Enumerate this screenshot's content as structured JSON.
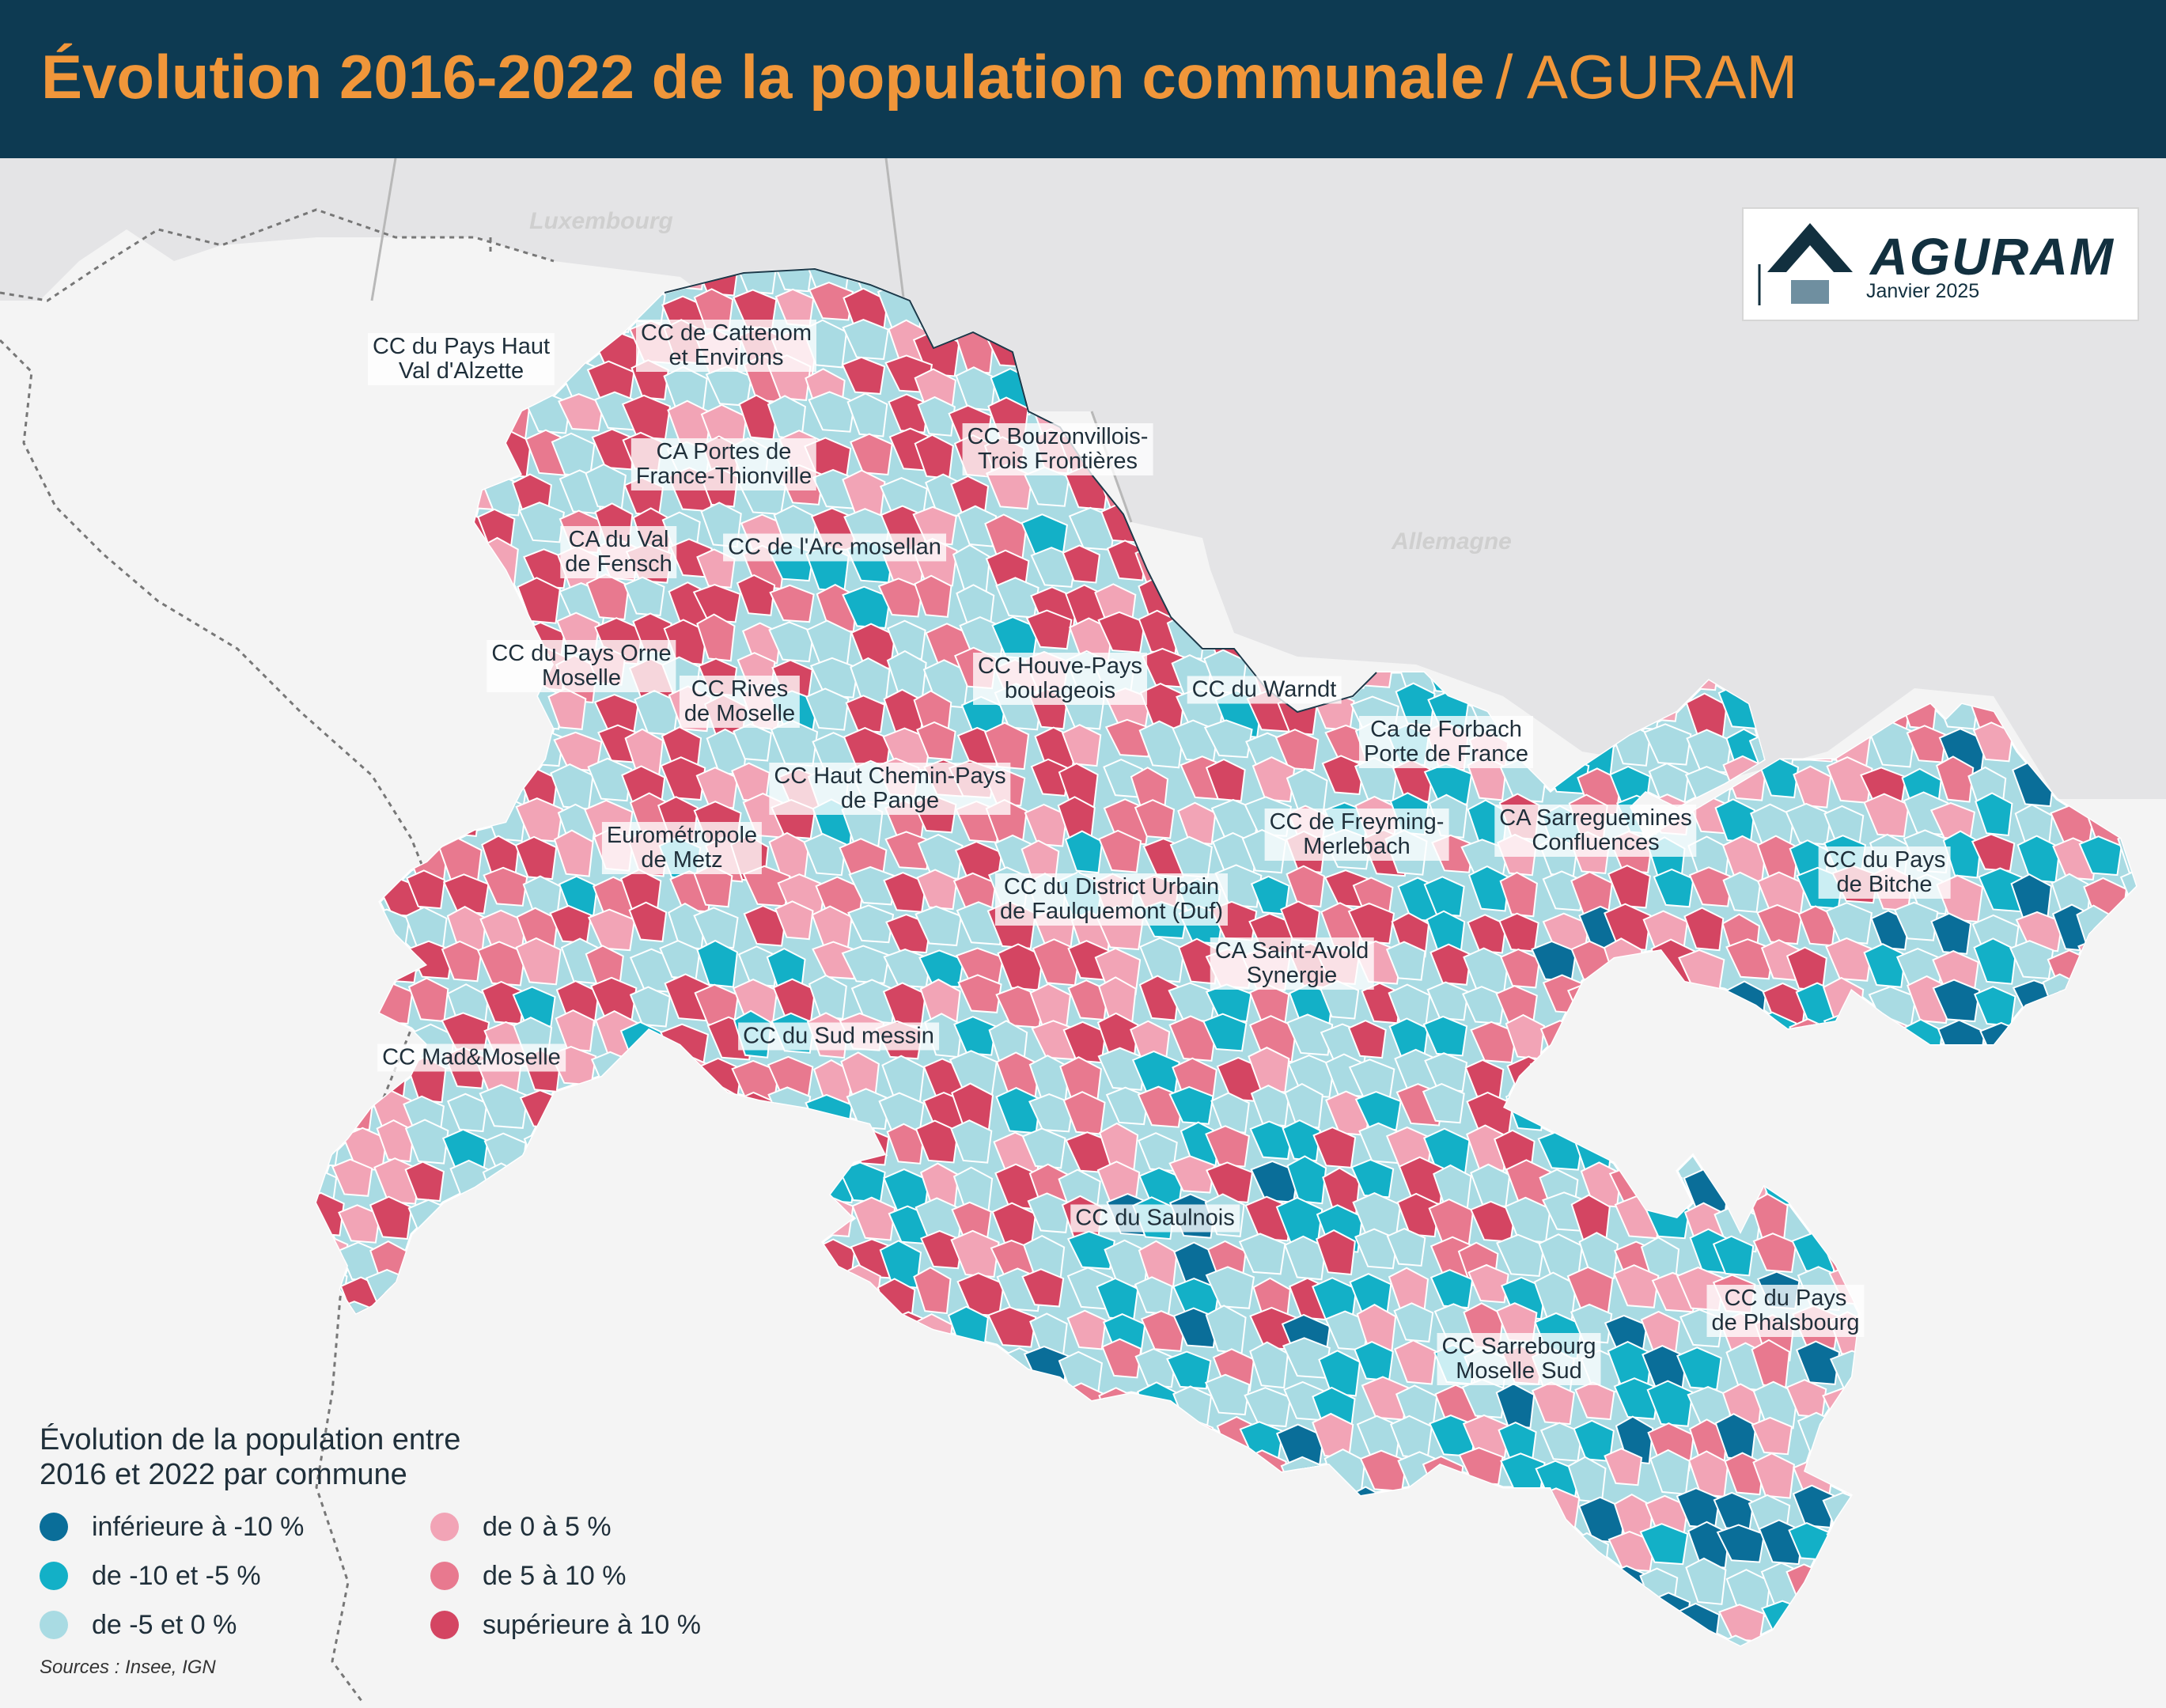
{
  "header": {
    "title": "Évolution 2016-2022 de la population communale",
    "org": "/ AGURAM"
  },
  "logo": {
    "text": "AGURAM",
    "date": "Janvier 2025"
  },
  "countries": [
    {
      "name": "Luxembourg"
    },
    {
      "name": "Allemagne"
    }
  ],
  "colors": {
    "dark_blue": "#0a6e99",
    "cyan": "#13b0c7",
    "light_blue": "#a9dbe3",
    "light_pink": "#f2a4b6",
    "pink": "#e8798f",
    "red": "#d44562",
    "header_bg": "#0d3a52",
    "title": "#f0963a"
  },
  "regions": [
    {
      "name": "CC du Pays Haut\nVal d'Alzette"
    },
    {
      "name": "CC de Cattenom\net Environs"
    },
    {
      "name": "CA Portes de\nFrance-Thionville"
    },
    {
      "name": "CC Bouzonvillois-\nTrois Frontières"
    },
    {
      "name": "CA du Val\nde Fensch"
    },
    {
      "name": "CC de l'Arc mosellan"
    },
    {
      "name": "CC du Pays Orne\nMoselle"
    },
    {
      "name": "CC Rives\nde Moselle"
    },
    {
      "name": "CC Houve-Pays\nboulageois"
    },
    {
      "name": "CC du Warndt"
    },
    {
      "name": "Ca de Forbach\nPorte de France"
    },
    {
      "name": "CC Haut Chemin-Pays\nde Pange"
    },
    {
      "name": "Eurométropole\nde Metz"
    },
    {
      "name": "CC de Freyming-\nMerlebach"
    },
    {
      "name": "CA Sarreguemines\nConfluences"
    },
    {
      "name": "CC du Pays\nde Bitche"
    },
    {
      "name": "CC du District Urbain\nde Faulquemont (Duf)"
    },
    {
      "name": "CA Saint-Avold\nSynergie"
    },
    {
      "name": "CC du Sud messin"
    },
    {
      "name": "CC Mad&Moselle"
    },
    {
      "name": "CC du Saulnois"
    },
    {
      "name": "CC du Pays\nde Phalsbourg"
    },
    {
      "name": "CC Sarrebourg\nMoselle Sud"
    }
  ],
  "legend": {
    "title": "Évolution de la population entre\n2016 et 2022 par commune",
    "items": [
      {
        "label": "inférieure à -10 %",
        "color": "#0a6e99"
      },
      {
        "label": "de -10 et -5 %",
        "color": "#13b0c7"
      },
      {
        "label": "de -5 et 0 %",
        "color": "#a9dbe3"
      },
      {
        "label": "de 0 à 5 %",
        "color": "#f2a4b6"
      },
      {
        "label": "de 5 à 10 %",
        "color": "#e8798f"
      },
      {
        "label": "supérieure à 10 %",
        "color": "#d44562"
      }
    ]
  },
  "sources": "Sources : Insee, IGN"
}
